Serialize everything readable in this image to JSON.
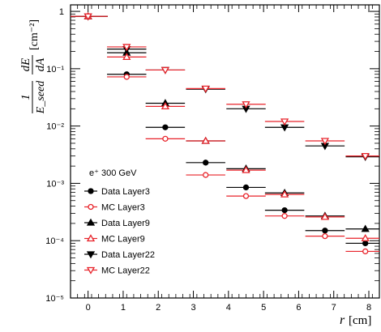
{
  "chart_data": {
    "type": "scatter",
    "title": "",
    "xlabel_symbol": "r",
    "xlabel_unit": "[cm]",
    "ylabel_frac_num": "1",
    "ylabel_frac_den": "E_seed",
    "ylabel_deriv_num": "dE",
    "ylabel_deriv_den": "dA",
    "ylabel_unit": "[cm⁻²]",
    "xlim": [
      -0.5,
      8.3
    ],
    "ylim": [
      1e-05,
      1.3
    ],
    "yscale": "log",
    "x_ticks": [
      "0",
      "1",
      "2",
      "3",
      "4",
      "5",
      "6",
      "7",
      "8"
    ],
    "y_ticks": [
      {
        "value": 1,
        "label": "1"
      },
      {
        "value": 0.1,
        "label": "10⁻¹"
      },
      {
        "value": 0.01,
        "label": "10⁻²"
      },
      {
        "value": 0.001,
        "label": "10⁻³"
      },
      {
        "value": 0.0001,
        "label": "10⁻⁴"
      },
      {
        "value": 1e-05,
        "label": "10⁻⁵"
      }
    ],
    "x": [
      0,
      1.1,
      2.2,
      3.35,
      4.5,
      5.6,
      6.75,
      7.9
    ],
    "x_halfwidth": 0.56,
    "legend_title": "e⁺ 300 GeV",
    "legend_position": "bottom-left",
    "grid": false,
    "series": [
      {
        "name": "Data Layer3",
        "marker": "circle-filled",
        "color": "#000000",
        "values": [
          0.82,
          0.08,
          0.0095,
          0.0023,
          0.00085,
          0.00034,
          0.00015,
          9e-05
        ]
      },
      {
        "name": "MC Layer3",
        "marker": "circle-open",
        "color": "#e8232a",
        "values": [
          0.82,
          0.072,
          0.006,
          0.0014,
          0.0006,
          0.00027,
          0.00012,
          6.5e-05
        ]
      },
      {
        "name": "Data Layer9",
        "marker": "triangle-up-filled",
        "color": "#000000",
        "values": [
          0.82,
          0.19,
          0.025,
          0.0055,
          0.0018,
          0.00068,
          0.00027,
          0.00016
        ]
      },
      {
        "name": "MC Layer9",
        "marker": "triangle-up-open",
        "color": "#e8232a",
        "values": [
          0.82,
          0.16,
          0.022,
          0.0055,
          0.0017,
          0.00064,
          0.00026,
          0.00011
        ]
      },
      {
        "name": "Data Layer22",
        "marker": "triangle-down-filled",
        "color": "#000000",
        "values": [
          0.82,
          0.22,
          0.095,
          0.044,
          0.02,
          0.0095,
          0.0045,
          0.0029
        ]
      },
      {
        "name": "MC Layer22",
        "marker": "triangle-down-open",
        "color": "#e8232a",
        "values": [
          0.82,
          0.24,
          0.095,
          0.045,
          0.024,
          0.012,
          0.0055,
          0.003
        ]
      }
    ]
  }
}
